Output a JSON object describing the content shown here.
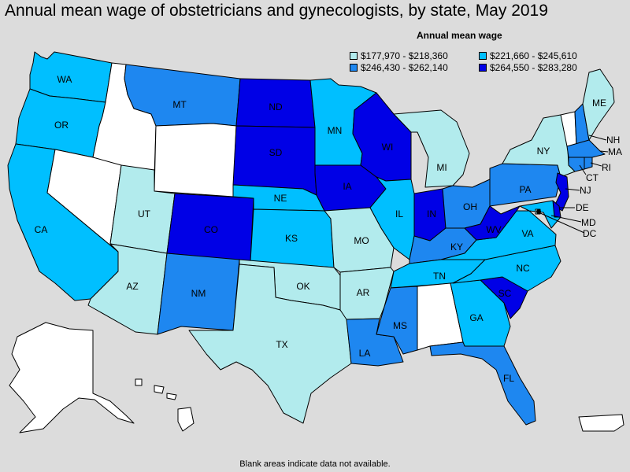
{
  "title": "Annual mean wage of obstetricians and gynecologists, by state, May 2019",
  "legend": {
    "title": "Annual mean wage",
    "items": [
      {
        "label": "$177,970 - $218,360",
        "color": "#b2ebed"
      },
      {
        "label": "$221,660 - $245,610",
        "color": "#00bfff"
      },
      {
        "label": "$246,430 - $262,140",
        "color": "#1e87f0"
      },
      {
        "label": "$264,550 - $283,280",
        "color": "#0000e6"
      }
    ]
  },
  "no_data_color": "#ffffff",
  "footnote": "Blank areas indicate data not available.",
  "states": {
    "WA": {
      "label": "WA",
      "tier": 1
    },
    "OR": {
      "label": "OR",
      "tier": 1
    },
    "CA": {
      "label": "CA",
      "tier": 1
    },
    "ID": {
      "label": "",
      "tier": 0
    },
    "NV": {
      "label": "",
      "tier": 0
    },
    "MT": {
      "label": "MT",
      "tier": 2
    },
    "WY": {
      "label": "",
      "tier": 0
    },
    "UT": {
      "label": "UT",
      "tier": 0.5
    },
    "AZ": {
      "label": "AZ",
      "tier": 0.5
    },
    "CO": {
      "label": "CO",
      "tier": 3
    },
    "NM": {
      "label": "NM",
      "tier": 2
    },
    "ND": {
      "label": "ND",
      "tier": 3
    },
    "SD": {
      "label": "SD",
      "tier": 3
    },
    "NE": {
      "label": "NE",
      "tier": 1
    },
    "KS": {
      "label": "KS",
      "tier": 1
    },
    "OK": {
      "label": "OK",
      "tier": 0.5
    },
    "TX": {
      "label": "TX",
      "tier": 0.5
    },
    "MN": {
      "label": "MN",
      "tier": 1
    },
    "IA": {
      "label": "IA",
      "tier": 3
    },
    "MO": {
      "label": "MO",
      "tier": 0.5
    },
    "AR": {
      "label": "AR",
      "tier": 0.5
    },
    "LA": {
      "label": "LA",
      "tier": 2
    },
    "WI": {
      "label": "WI",
      "tier": 3
    },
    "IL": {
      "label": "IL",
      "tier": 1
    },
    "MI": {
      "label": "MI",
      "tier": 0.5
    },
    "IN": {
      "label": "IN",
      "tier": 3
    },
    "OH": {
      "label": "OH",
      "tier": 2
    },
    "KY": {
      "label": "KY",
      "tier": 2
    },
    "TN": {
      "label": "TN",
      "tier": 1
    },
    "MS": {
      "label": "MS",
      "tier": 2
    },
    "AL": {
      "label": "",
      "tier": 0
    },
    "GA": {
      "label": "GA",
      "tier": 1
    },
    "FL": {
      "label": "FL",
      "tier": 2
    },
    "SC": {
      "label": "SC",
      "tier": 3
    },
    "NC": {
      "label": "NC",
      "tier": 1
    },
    "VA": {
      "label": "VA",
      "tier": 1
    },
    "WV": {
      "label": "WV",
      "tier": 3
    },
    "PA": {
      "label": "PA",
      "tier": 2
    },
    "NY": {
      "label": "NY",
      "tier": 0.5
    },
    "VT": {
      "label": "",
      "tier": 0
    },
    "NH": {
      "label": "NH",
      "tier": 2
    },
    "ME": {
      "label": "ME",
      "tier": 0.5
    },
    "MA": {
      "label": "MA",
      "tier": 2
    },
    "RI": {
      "label": "RI",
      "tier": 2
    },
    "CT": {
      "label": "CT",
      "tier": 2
    },
    "NJ": {
      "label": "NJ",
      "tier": 3
    },
    "DE": {
      "label": "DE",
      "tier": 3
    },
    "MD": {
      "label": "MD",
      "tier": 1
    },
    "DC": {
      "label": "DC",
      "tier": 0.5
    },
    "AK": {
      "label": "",
      "tier": 0
    },
    "HI": {
      "label": "",
      "tier": 0
    },
    "PR": {
      "label": "",
      "tier": 0
    }
  }
}
